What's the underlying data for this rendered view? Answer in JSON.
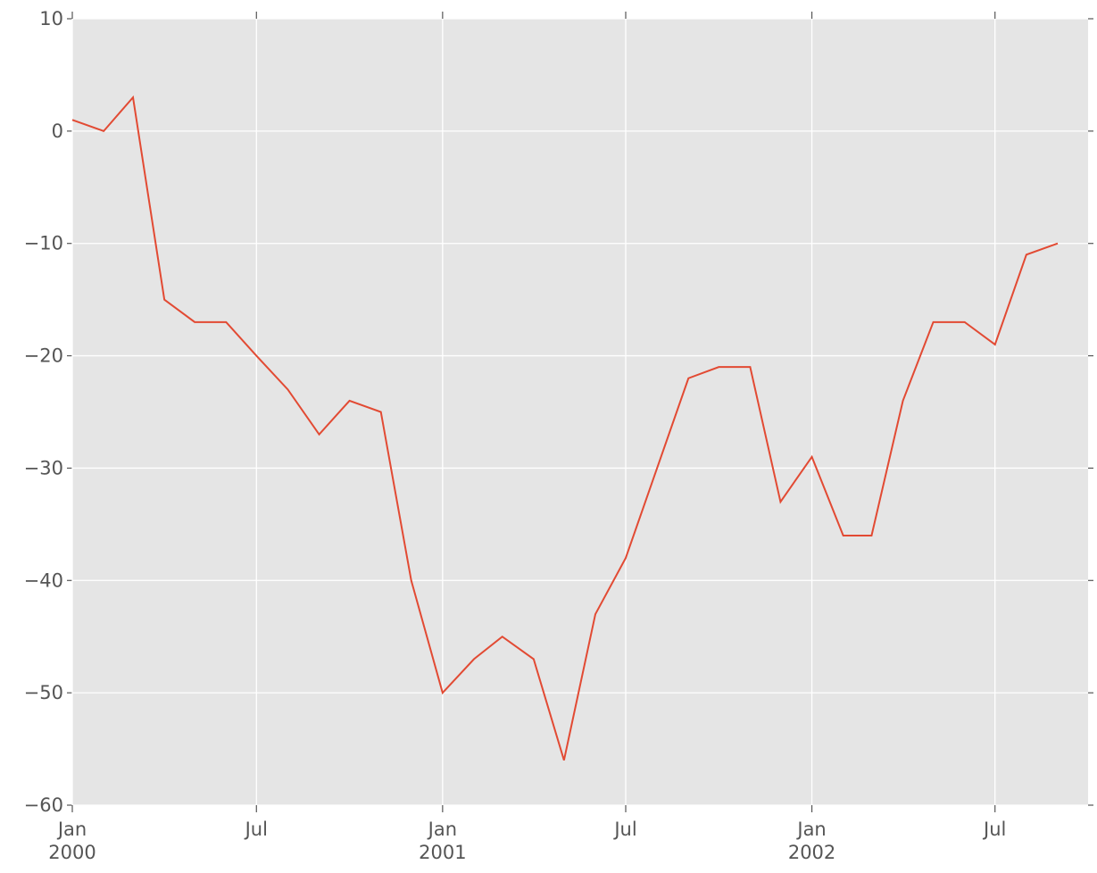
{
  "chart_data": {
    "type": "line",
    "x": [
      "2000-01",
      "2000-02",
      "2000-03",
      "2000-04",
      "2000-05",
      "2000-06",
      "2000-07",
      "2000-08",
      "2000-09",
      "2000-10",
      "2000-11",
      "2000-12",
      "2001-01",
      "2001-02",
      "2001-03",
      "2001-04",
      "2001-05",
      "2001-06",
      "2001-07",
      "2001-08",
      "2001-09",
      "2001-10",
      "2001-11",
      "2001-12",
      "2002-01",
      "2002-02",
      "2002-03",
      "2002-04",
      "2002-05",
      "2002-06",
      "2002-07",
      "2002-08",
      "2002-09"
    ],
    "series": [
      {
        "color": "#e24a33",
        "values": [
          1,
          0,
          3,
          -15,
          -17,
          -17,
          -20,
          -23,
          -27,
          -24,
          -25,
          -40,
          -50,
          -47,
          -45,
          -47,
          -56,
          -43,
          -38,
          -30,
          -22,
          -21,
          -21,
          -33,
          -29,
          -36,
          -36,
          -24,
          -17,
          -17,
          -19,
          -11,
          -10
        ]
      }
    ],
    "xlim": [
      "2000-01",
      "2002-10"
    ],
    "xticks": [
      {
        "value": "2000-01",
        "label": "Jan 2000"
      },
      {
        "value": "2000-07",
        "label": "Jul"
      },
      {
        "value": "2001-01",
        "label": "Jan 2001"
      },
      {
        "value": "2001-07",
        "label": "Jul"
      },
      {
        "value": "2002-01",
        "label": "Jan 2002"
      },
      {
        "value": "2002-07",
        "label": "Jul"
      }
    ],
    "ylim": [
      -60,
      10
    ],
    "yticks": [
      10,
      0,
      -10,
      -20,
      -30,
      -40,
      -50,
      -60
    ],
    "grid": true,
    "background": "#e5e5e5"
  }
}
